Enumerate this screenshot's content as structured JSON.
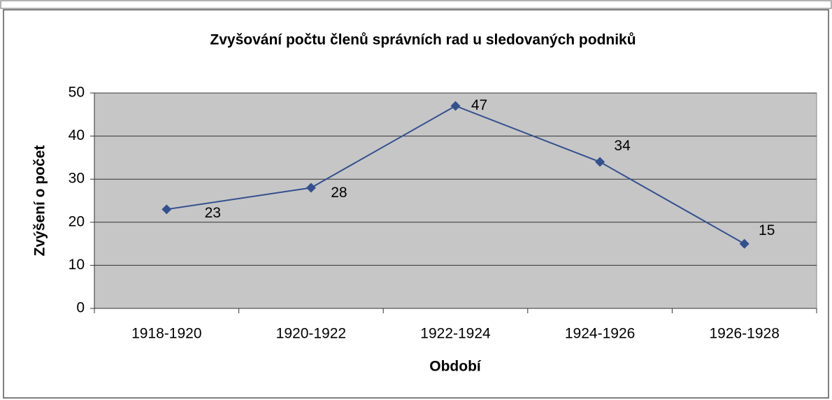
{
  "chart_data": {
    "type": "line",
    "title": "Zvyšování počtu členů správních rad u sledovaných podniků",
    "xlabel": "Období",
    "ylabel": "Zvýšení o počet",
    "categories": [
      "1918-1920",
      "1920-1922",
      "1922-1924",
      "1924-1926",
      "1926-1928"
    ],
    "series": [
      {
        "name": "Zvýšení o počet",
        "color": "#34508f",
        "values": [
          23,
          28,
          47,
          34,
          15
        ]
      }
    ],
    "ylim": [
      0,
      50
    ],
    "yticks": [
      0,
      10,
      20,
      30,
      40,
      50
    ],
    "grid": true
  }
}
